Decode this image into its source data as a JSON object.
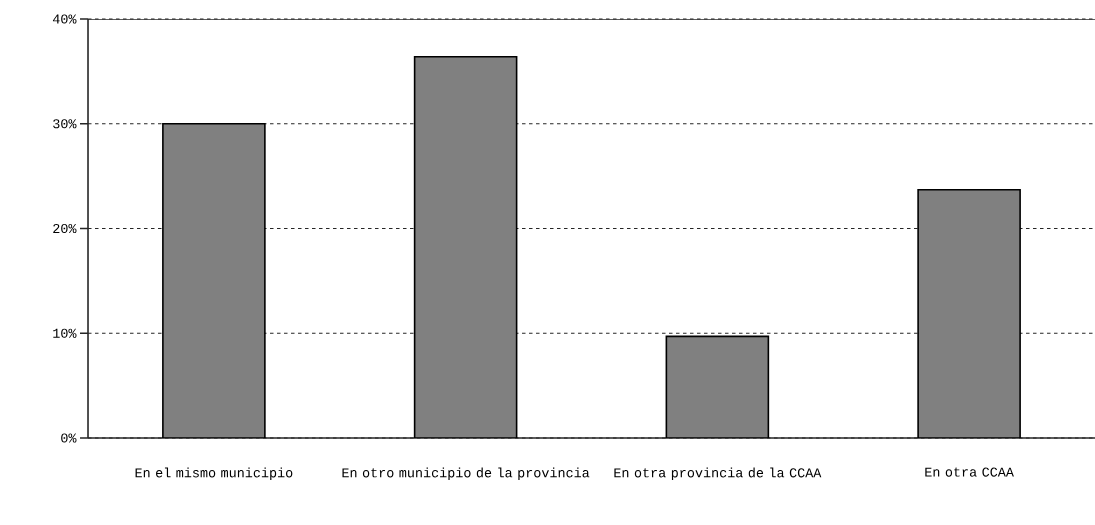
{
  "chart_data": {
    "type": "bar",
    "categories": [
      "En el mismo municipio",
      "En otro municipio de la provincia",
      "En otra provincia de la CCAA",
      "En otra CCAA"
    ],
    "values": [
      30.0,
      36.4,
      9.7,
      23.7
    ],
    "color": "#808080",
    "ylim": [
      0,
      40
    ],
    "yticks": [
      {
        "value": 0,
        "label": "0%"
      },
      {
        "value": 10,
        "label": "10%"
      },
      {
        "value": 20,
        "label": "20%"
      },
      {
        "value": 30,
        "label": "30%"
      },
      {
        "value": 40,
        "label": "40%"
      }
    ],
    "grid": "y",
    "line_style": "dashed"
  }
}
